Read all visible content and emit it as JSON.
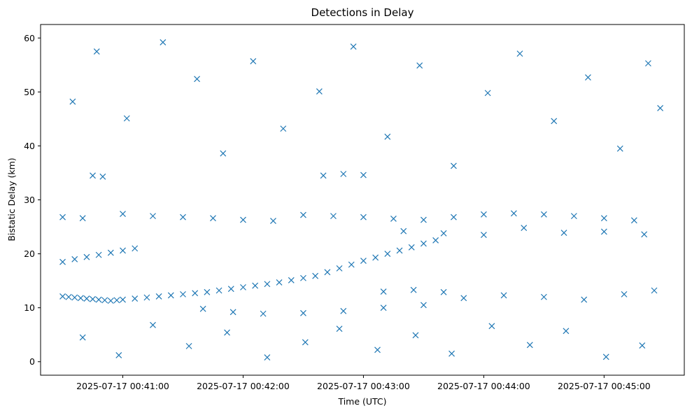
{
  "chart_data": {
    "type": "scatter",
    "title": "Detections in Delay",
    "xlabel": "Time (UTC)",
    "ylabel": "Bistatic Delay (km)",
    "x_ticks": [
      "2025-07-17 00:41:00",
      "2025-07-17 00:42:00",
      "2025-07-17 00:43:00",
      "2025-07-17 00:44:00",
      "2025-07-17 00:45:00"
    ],
    "y_ticks": [
      "0",
      "10",
      "20",
      "30",
      "40",
      "50",
      "60"
    ],
    "xlim": [
      "2025-07-17 00:40:19",
      "2025-07-17 00:45:40"
    ],
    "ylim": [
      -2.5,
      62.5
    ],
    "marker": "x",
    "marker_color": "#1f77b4",
    "grid": false,
    "series": [
      {
        "name": "",
        "points": [
          [
            "2025-07-17 00:40:30",
            12.1
          ],
          [
            "2025-07-17 00:40:33",
            12.0
          ],
          [
            "2025-07-17 00:40:36",
            11.9
          ],
          [
            "2025-07-17 00:40:39",
            11.8
          ],
          [
            "2025-07-17 00:40:42",
            11.7
          ],
          [
            "2025-07-17 00:40:45",
            11.6
          ],
          [
            "2025-07-17 00:40:48",
            11.5
          ],
          [
            "2025-07-17 00:40:51",
            11.4
          ],
          [
            "2025-07-17 00:40:54",
            11.3
          ],
          [
            "2025-07-17 00:40:57",
            11.4
          ],
          [
            "2025-07-17 00:41:00",
            11.5
          ],
          [
            "2025-07-17 00:41:06",
            11.7
          ],
          [
            "2025-07-17 00:41:12",
            11.9
          ],
          [
            "2025-07-17 00:41:18",
            12.1
          ],
          [
            "2025-07-17 00:41:24",
            12.3
          ],
          [
            "2025-07-17 00:41:30",
            12.5
          ],
          [
            "2025-07-17 00:41:36",
            12.7
          ],
          [
            "2025-07-17 00:41:42",
            12.9
          ],
          [
            "2025-07-17 00:41:48",
            13.2
          ],
          [
            "2025-07-17 00:41:54",
            13.5
          ],
          [
            "2025-07-17 00:42:00",
            13.8
          ],
          [
            "2025-07-17 00:42:06",
            14.1
          ],
          [
            "2025-07-17 00:42:12",
            14.4
          ],
          [
            "2025-07-17 00:42:18",
            14.7
          ],
          [
            "2025-07-17 00:42:24",
            15.1
          ],
          [
            "2025-07-17 00:42:30",
            15.5
          ],
          [
            "2025-07-17 00:42:36",
            15.9
          ],
          [
            "2025-07-17 00:42:42",
            16.6
          ],
          [
            "2025-07-17 00:42:48",
            17.3
          ],
          [
            "2025-07-17 00:42:54",
            18.0
          ],
          [
            "2025-07-17 00:43:00",
            18.7
          ],
          [
            "2025-07-17 00:43:06",
            19.3
          ],
          [
            "2025-07-17 00:43:12",
            20.0
          ],
          [
            "2025-07-17 00:43:18",
            20.6
          ],
          [
            "2025-07-17 00:43:24",
            21.2
          ],
          [
            "2025-07-17 00:43:30",
            21.9
          ],
          [
            "2025-07-17 00:43:36",
            22.5
          ],
          [
            "2025-07-17 00:40:30",
            18.5
          ],
          [
            "2025-07-17 00:40:36",
            19.0
          ],
          [
            "2025-07-17 00:40:42",
            19.4
          ],
          [
            "2025-07-17 00:40:48",
            19.8
          ],
          [
            "2025-07-17 00:40:54",
            20.2
          ],
          [
            "2025-07-17 00:41:00",
            20.6
          ],
          [
            "2025-07-17 00:41:06",
            21.0
          ],
          [
            "2025-07-17 00:40:30",
            26.8
          ],
          [
            "2025-07-17 00:40:40",
            26.6
          ],
          [
            "2025-07-17 00:41:00",
            27.4
          ],
          [
            "2025-07-17 00:41:15",
            27.0
          ],
          [
            "2025-07-17 00:41:30",
            26.8
          ],
          [
            "2025-07-17 00:41:45",
            26.6
          ],
          [
            "2025-07-17 00:42:00",
            26.3
          ],
          [
            "2025-07-17 00:42:15",
            26.1
          ],
          [
            "2025-07-17 00:42:30",
            27.2
          ],
          [
            "2025-07-17 00:42:45",
            27.0
          ],
          [
            "2025-07-17 00:43:00",
            26.8
          ],
          [
            "2025-07-17 00:43:15",
            26.5
          ],
          [
            "2025-07-17 00:43:30",
            26.3
          ],
          [
            "2025-07-17 00:43:45",
            26.8
          ],
          [
            "2025-07-17 00:44:00",
            27.3
          ],
          [
            "2025-07-17 00:44:15",
            27.5
          ],
          [
            "2025-07-17 00:44:30",
            27.3
          ],
          [
            "2025-07-17 00:44:45",
            27.0
          ],
          [
            "2025-07-17 00:45:00",
            26.6
          ],
          [
            "2025-07-17 00:45:15",
            26.2
          ],
          [
            "2025-07-17 00:41:40",
            9.8
          ],
          [
            "2025-07-17 00:41:55",
            9.2
          ],
          [
            "2025-07-17 00:42:10",
            8.9
          ],
          [
            "2025-07-17 00:42:30",
            9.0
          ],
          [
            "2025-07-17 00:42:50",
            9.4
          ],
          [
            "2025-07-17 00:43:10",
            10.0
          ],
          [
            "2025-07-17 00:43:30",
            10.5
          ],
          [
            "2025-07-17 00:43:50",
            11.8
          ],
          [
            "2025-07-17 00:44:10",
            12.3
          ],
          [
            "2025-07-17 00:44:30",
            12.0
          ],
          [
            "2025-07-17 00:44:50",
            11.5
          ],
          [
            "2025-07-17 00:45:10",
            12.5
          ],
          [
            "2025-07-17 00:45:25",
            13.2
          ],
          [
            "2025-07-17 00:43:10",
            13.0
          ],
          [
            "2025-07-17 00:43:25",
            13.3
          ],
          [
            "2025-07-17 00:43:40",
            12.9
          ],
          [
            "2025-07-17 00:42:40",
            34.5
          ],
          [
            "2025-07-17 00:42:50",
            34.8
          ],
          [
            "2025-07-17 00:43:00",
            34.6
          ],
          [
            "2025-07-17 00:40:45",
            34.5
          ],
          [
            "2025-07-17 00:40:50",
            34.3
          ],
          [
            "2025-07-17 00:43:20",
            24.2
          ],
          [
            "2025-07-17 00:43:40",
            23.8
          ],
          [
            "2025-07-17 00:44:00",
            23.5
          ],
          [
            "2025-07-17 00:44:20",
            24.8
          ],
          [
            "2025-07-17 00:44:40",
            23.9
          ],
          [
            "2025-07-17 00:45:00",
            24.1
          ],
          [
            "2025-07-17 00:45:20",
            23.6
          ],
          [
            "2025-07-17 00:40:35",
            48.2
          ],
          [
            "2025-07-17 00:40:47",
            57.5
          ],
          [
            "2025-07-17 00:41:02",
            45.1
          ],
          [
            "2025-07-17 00:41:20",
            59.2
          ],
          [
            "2025-07-17 00:41:37",
            52.4
          ],
          [
            "2025-07-17 00:41:50",
            38.6
          ],
          [
            "2025-07-17 00:42:05",
            55.7
          ],
          [
            "2025-07-17 00:42:20",
            43.2
          ],
          [
            "2025-07-17 00:42:38",
            50.1
          ],
          [
            "2025-07-17 00:42:55",
            58.4
          ],
          [
            "2025-07-17 00:43:12",
            41.7
          ],
          [
            "2025-07-17 00:43:28",
            54.9
          ],
          [
            "2025-07-17 00:43:45",
            36.3
          ],
          [
            "2025-07-17 00:44:02",
            49.8
          ],
          [
            "2025-07-17 00:44:18",
            57.1
          ],
          [
            "2025-07-17 00:44:35",
            44.6
          ],
          [
            "2025-07-17 00:44:52",
            52.7
          ],
          [
            "2025-07-17 00:45:08",
            39.5
          ],
          [
            "2025-07-17 00:45:22",
            55.3
          ],
          [
            "2025-07-17 00:45:28",
            47.0
          ],
          [
            "2025-07-17 00:40:40",
            4.5
          ],
          [
            "2025-07-17 00:40:58",
            1.2
          ],
          [
            "2025-07-17 00:41:15",
            6.8
          ],
          [
            "2025-07-17 00:41:33",
            2.9
          ],
          [
            "2025-07-17 00:41:52",
            5.4
          ],
          [
            "2025-07-17 00:42:12",
            0.8
          ],
          [
            "2025-07-17 00:42:31",
            3.6
          ],
          [
            "2025-07-17 00:42:48",
            6.1
          ],
          [
            "2025-07-17 00:43:07",
            2.2
          ],
          [
            "2025-07-17 00:43:26",
            4.9
          ],
          [
            "2025-07-17 00:43:44",
            1.5
          ],
          [
            "2025-07-17 00:44:04",
            6.6
          ],
          [
            "2025-07-17 00:44:23",
            3.1
          ],
          [
            "2025-07-17 00:44:41",
            5.7
          ],
          [
            "2025-07-17 00:45:01",
            0.9
          ],
          [
            "2025-07-17 00:45:19",
            3.0
          ]
        ]
      }
    ]
  }
}
